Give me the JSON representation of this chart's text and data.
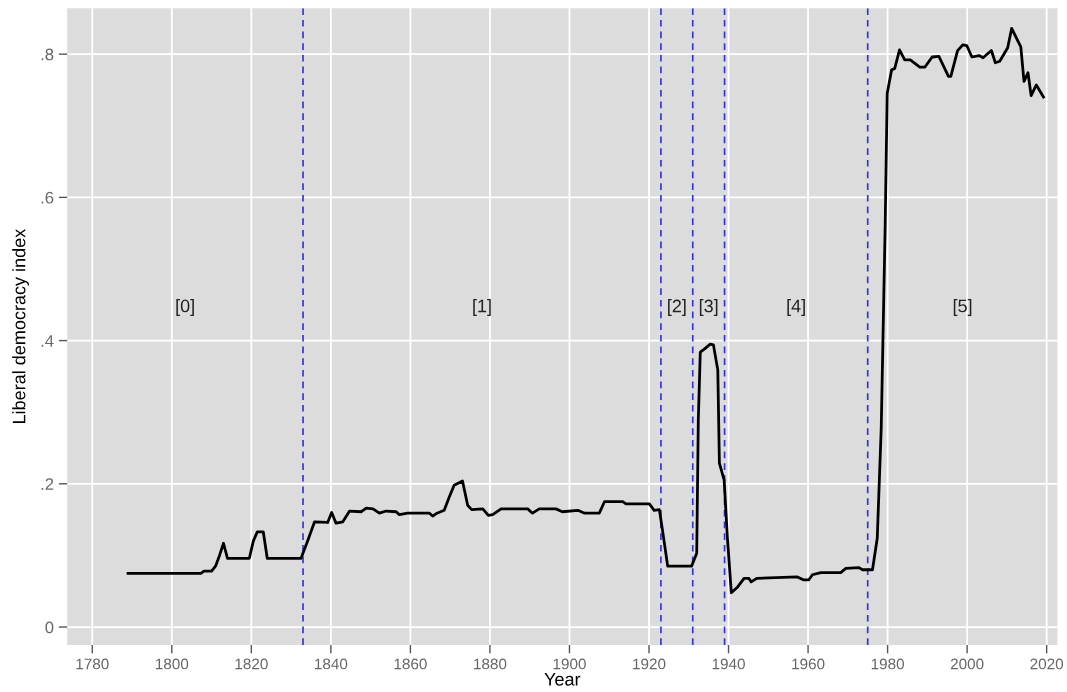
{
  "chart_data": {
    "type": "line",
    "xlabel": "Year",
    "ylabel": "Liberal democracy index",
    "xlim": [
      1773.7,
      2022.7
    ],
    "ylim": [
      -0.025,
      0.864
    ],
    "xticks": [
      1780,
      1800,
      1820,
      1840,
      1860,
      1880,
      1900,
      1920,
      1940,
      1960,
      1980,
      2000,
      2020
    ],
    "yticks": [
      {
        "value": 0,
        "label": "0"
      },
      {
        "value": 0.2,
        "label": ".2"
      },
      {
        "value": 0.4,
        "label": ".4"
      },
      {
        "value": 0.6,
        "label": ".6"
      },
      {
        "value": 0.8,
        "label": ".8"
      }
    ],
    "grid": true,
    "marker": "none",
    "line_style": "solid",
    "series": [
      {
        "color": "#000000",
        "x": [
          1789,
          1807.4,
          1808,
          1810,
          1811,
          1812,
          1813,
          1814,
          1819.5,
          1820.5,
          1821.5,
          1823,
          1824,
          1832.5,
          1834.2,
          1835.9,
          1839.2,
          1840.2,
          1841.3,
          1843,
          1844.7,
          1847.6,
          1848.9,
          1850.6,
          1852.2,
          1853.9,
          1856.4,
          1857.2,
          1859.3,
          1864.8,
          1865.6,
          1866.7,
          1868.5,
          1869.8,
          1871,
          1873.1,
          1874.4,
          1875.4,
          1878.2,
          1879.6,
          1880.7,
          1882.8,
          1889.5,
          1890.7,
          1892.4,
          1896.6,
          1898.2,
          1902.1,
          1903.8,
          1907.5,
          1908.8,
          1913.4,
          1914.2,
          1920.1,
          1921.3,
          1922.6,
          1923.4,
          1924.7,
          1930.7,
          1932.0,
          1932.4,
          1932.9,
          1933.9,
          1935.4,
          1936.2,
          1937.3,
          1937.7,
          1938.9,
          1939.7,
          1940.7,
          1942.3,
          1943.9,
          1945.1,
          1945.7,
          1947.1,
          1957.3,
          1958.8,
          1960.2,
          1961.1,
          1963.2,
          1968.2,
          1969.5,
          1972.8,
          1973.7,
          1976.2,
          1977.4,
          1978.4,
          1979.4,
          1979.9,
          1981.0,
          1981.8,
          1983.0,
          1984.3,
          1985.7,
          1988.1,
          1989.4,
          1991.2,
          1992.9,
          1995.3,
          1995.9,
          1997.6,
          1998.9,
          1999.9,
          2001.2,
          2003.0,
          2004.0,
          2006.1,
          2007.1,
          2008.2,
          2010.2,
          2011.2,
          2013.5,
          2014.3,
          2015.3,
          2016.1,
          2017.4,
          2019.2
        ],
        "values": [
          0.075,
          0.075,
          0.078,
          0.078,
          0.085,
          0.1,
          0.117,
          0.096,
          0.096,
          0.12,
          0.133,
          0.133,
          0.096,
          0.096,
          0.121,
          0.147,
          0.146,
          0.16,
          0.145,
          0.147,
          0.162,
          0.161,
          0.166,
          0.165,
          0.159,
          0.162,
          0.161,
          0.157,
          0.159,
          0.159,
          0.155,
          0.159,
          0.163,
          0.182,
          0.198,
          0.204,
          0.17,
          0.164,
          0.165,
          0.156,
          0.157,
          0.165,
          0.165,
          0.159,
          0.165,
          0.165,
          0.161,
          0.163,
          0.159,
          0.159,
          0.175,
          0.175,
          0.172,
          0.172,
          0.163,
          0.164,
          0.135,
          0.085,
          0.085,
          0.103,
          0.289,
          0.384,
          0.388,
          0.395,
          0.394,
          0.359,
          0.229,
          0.205,
          0.126,
          0.048,
          0.056,
          0.068,
          0.068,
          0.063,
          0.068,
          0.07,
          0.066,
          0.066,
          0.073,
          0.076,
          0.076,
          0.082,
          0.083,
          0.08,
          0.08,
          0.124,
          0.278,
          0.563,
          0.745,
          0.778,
          0.78,
          0.806,
          0.792,
          0.792,
          0.782,
          0.782,
          0.796,
          0.797,
          0.769,
          0.769,
          0.805,
          0.813,
          0.812,
          0.796,
          0.798,
          0.795,
          0.805,
          0.788,
          0.79,
          0.809,
          0.836,
          0.81,
          0.762,
          0.774,
          0.742,
          0.757,
          0.74
        ]
      }
    ],
    "ref_lines": [
      {
        "axis": "x",
        "value": 1833,
        "color": "#3333dd",
        "line_style": "dashed"
      },
      {
        "axis": "x",
        "value": 1923,
        "color": "#3333dd",
        "line_style": "dashed"
      },
      {
        "axis": "x",
        "value": 1931,
        "color": "#3333dd",
        "line_style": "dashed"
      },
      {
        "axis": "x",
        "value": 1939,
        "color": "#3333dd",
        "line_style": "dashed"
      },
      {
        "axis": "x",
        "value": 1975,
        "color": "#3333dd",
        "line_style": "dashed"
      }
    ],
    "annotations": [
      "[0]",
      "[1]",
      "[2]",
      "[3]",
      "[4]",
      "[5]"
    ]
  }
}
